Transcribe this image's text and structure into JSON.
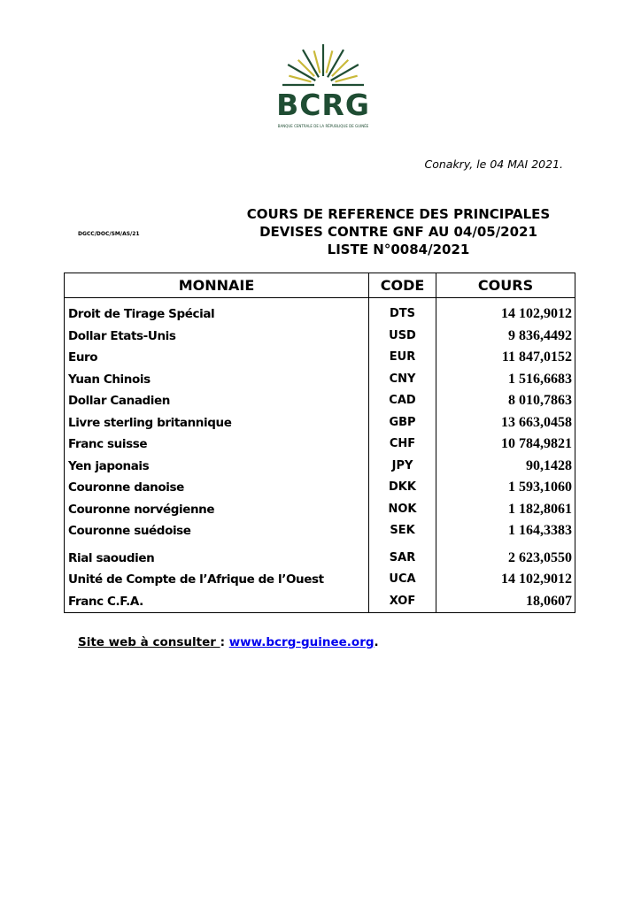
{
  "logo": {
    "text": "BCRG",
    "subtitle": "BANQUE CENTRALE DE LA RÉPUBLIQUE DE GUINÉE",
    "colors": {
      "green": "#1f4d33",
      "gold": "#c9b93a"
    }
  },
  "date_line": "Conakry, le 04 MAI 2021.",
  "reference": "DGCC/DOC/SM/AS/21",
  "title": [
    "COURS DE REFERENCE DES PRINCIPALES",
    "DEVISES CONTRE GNF AU  04/05/2021",
    "LISTE N°0084/2021"
  ],
  "table": {
    "headers": [
      "MONNAIE",
      "CODE",
      "COURS"
    ],
    "rows": [
      {
        "name": "Droit de Tirage Spécial",
        "code": "DTS",
        "rate": "14 102,9012"
      },
      {
        "name": "Dollar Etats-Unis",
        "code": "USD",
        "rate": "9 836,4492"
      },
      {
        "name": "Euro",
        "code": "EUR",
        "rate": "11 847,0152"
      },
      {
        "name": "Yuan Chinois",
        "code": "CNY",
        "rate": "1 516,6683"
      },
      {
        "name": "Dollar Canadien",
        "code": "CAD",
        "rate": "8 010,7863"
      },
      {
        "name": "Livre sterling britannique",
        "code": "GBP",
        "rate": "13 663,0458"
      },
      {
        "name": "Franc suisse",
        "code": "CHF",
        "rate": "10 784,9821"
      },
      {
        "name": "Yen japonais",
        "code": "JPY",
        "rate": "90,1428"
      },
      {
        "name": "Couronne danoise",
        "code": "DKK",
        "rate": "1 593,1060"
      },
      {
        "name": "Couronne norvégienne",
        "code": "NOK",
        "rate": "1 182,8061"
      },
      {
        "name": "Couronne suédoise",
        "code": "SEK",
        "rate": "1 164,3383"
      },
      {
        "name": "Rial saoudien",
        "code": "SAR",
        "rate": "2 623,0550"
      },
      {
        "name": "Unité de Compte de l’Afrique de l’Ouest",
        "code": "UCA",
        "rate": "14 102,9012"
      },
      {
        "name": "Franc C.F.A.",
        "code": "XOF",
        "rate": "18,0607"
      }
    ]
  },
  "footer": {
    "label": "Site web à consulter ",
    "sep": ": ",
    "link": "www.bcrg-guinee.org",
    "end": "."
  }
}
